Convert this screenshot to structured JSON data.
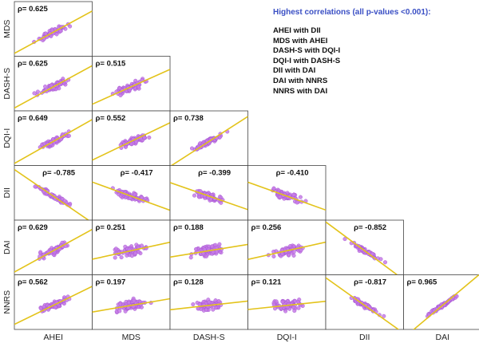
{
  "chart_data": {
    "type": "scatter",
    "title": "",
    "rows": [
      "MDS",
      "DASH-S",
      "DQI-I",
      "DII",
      "DAI",
      "NNRS"
    ],
    "columns": [
      "AHEI",
      "MDS",
      "DASH-S",
      "DQI-I",
      "DII",
      "DAI"
    ],
    "cells": [
      {
        "row": "MDS",
        "col": "AHEI",
        "rho": "ρ= 0.625"
      },
      {
        "row": "DASH-S",
        "col": "AHEI",
        "rho": "ρ= 0.625"
      },
      {
        "row": "DASH-S",
        "col": "MDS",
        "rho": "ρ= 0.515"
      },
      {
        "row": "DQI-I",
        "col": "AHEI",
        "rho": "ρ= 0.649"
      },
      {
        "row": "DQI-I",
        "col": "MDS",
        "rho": "ρ= 0.552"
      },
      {
        "row": "DQI-I",
        "col": "DASH-S",
        "rho": "ρ= 0.738"
      },
      {
        "row": "DII",
        "col": "AHEI",
        "rho": "ρ= -0.785"
      },
      {
        "row": "DII",
        "col": "MDS",
        "rho": "ρ= -0.417"
      },
      {
        "row": "DII",
        "col": "DASH-S",
        "rho": "ρ= -0.399"
      },
      {
        "row": "DII",
        "col": "DQI-I",
        "rho": "ρ= -0.410"
      },
      {
        "row": "DAI",
        "col": "AHEI",
        "rho": "ρ= 0.629"
      },
      {
        "row": "DAI",
        "col": "MDS",
        "rho": "ρ= 0.251"
      },
      {
        "row": "DAI",
        "col": "DASH-S",
        "rho": "ρ= 0.188"
      },
      {
        "row": "DAI",
        "col": "DQI-I",
        "rho": "ρ= 0.256"
      },
      {
        "row": "DAI",
        "col": "DII",
        "rho": "ρ= -0.852"
      },
      {
        "row": "NNRS",
        "col": "AHEI",
        "rho": "ρ= 0.562"
      },
      {
        "row": "NNRS",
        "col": "MDS",
        "rho": "ρ= 0.197"
      },
      {
        "row": "NNRS",
        "col": "DASH-S",
        "rho": "ρ= 0.128"
      },
      {
        "row": "NNRS",
        "col": "DQI-I",
        "rho": "ρ= 0.121"
      },
      {
        "row": "NNRS",
        "col": "DII",
        "rho": "ρ= -0.817"
      },
      {
        "row": "NNRS",
        "col": "DAI",
        "rho": "ρ= 0.965"
      }
    ],
    "annotation": {
      "title": "Highest correlations (all p-values <0.001):",
      "items": [
        "AHEI with DII",
        "MDS with AHEI",
        "DASH-S with DQI-I",
        "DQI-I with DASH-S",
        "DII with DAI",
        "DAI with NNRS",
        "NNRS with DAI"
      ]
    },
    "grid": false,
    "colors": {
      "point_fill": "#c77de6",
      "point_stroke": "#a14fcf",
      "fit_line": "#e3c31a",
      "cell_border": "#444444",
      "annotation_title": "#3a4fc4"
    }
  }
}
